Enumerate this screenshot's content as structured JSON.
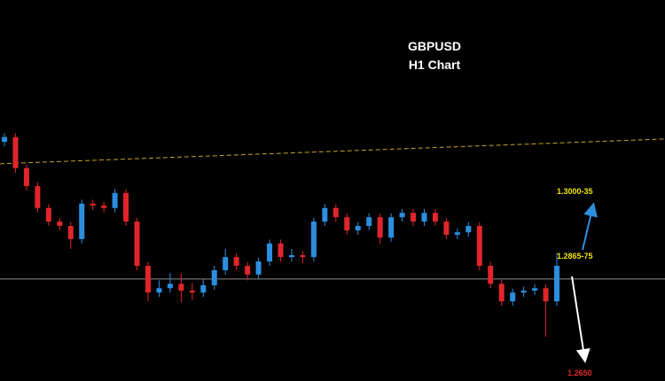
{
  "chart_data": {
    "type": "candlestick",
    "title": "GBPUSD",
    "subtitle": "H1 Chart",
    "annotations": [
      "1.3000-35",
      "1.2865-75",
      "1.2650"
    ],
    "up_color": "#2b8fe0",
    "down_color": "#e0262b",
    "ylim": [
      1.2608,
      1.3392
    ],
    "hline": {
      "value": 1.2818,
      "color": "#8a8a8a"
    },
    "trendline": {
      "values": [
        1.3055,
        1.3106
      ],
      "color": "#c9a227"
    },
    "categories": [
      null,
      null,
      null,
      null,
      null,
      null,
      null,
      null,
      null,
      null,
      null,
      null,
      null,
      null,
      null,
      null,
      null,
      null,
      null,
      null,
      null,
      null,
      null,
      null,
      null,
      null,
      null,
      null,
      null,
      null,
      null,
      null,
      null,
      null,
      null,
      null,
      null,
      null,
      null,
      null,
      null,
      null,
      null,
      null,
      null,
      null,
      null,
      null,
      null,
      null,
      null
    ],
    "open": [
      1.31,
      1.311,
      1.3046,
      1.3009,
      1.2964,
      1.2936,
      1.2927,
      1.29,
      1.2973,
      1.2969,
      1.2964,
      1.2995,
      1.2936,
      1.2845,
      1.279,
      1.2799,
      1.2808,
      1.2794,
      1.279,
      1.2805,
      1.2836,
      1.2863,
      1.2845,
      1.2827,
      1.2854,
      1.2891,
      1.2863,
      1.2867,
      1.2863,
      1.2936,
      1.2964,
      1.2945,
      1.2918,
      1.2927,
      1.2945,
      1.2903,
      1.2945,
      1.2954,
      1.2936,
      1.2954,
      1.2936,
      1.2909,
      1.2914,
      1.2927,
      1.2845,
      1.2808,
      1.2772,
      1.279,
      1.2794,
      1.2799,
      1.2772
    ],
    "high": [
      1.3118,
      1.3118,
      1.3054,
      1.3017,
      1.2972,
      1.2944,
      1.2935,
      1.2981,
      1.2981,
      1.2977,
      1.3003,
      1.3003,
      1.2944,
      1.2853,
      1.2815,
      1.283,
      1.283,
      1.281,
      1.2818,
      1.2845,
      1.288,
      1.2871,
      1.2853,
      1.2862,
      1.2899,
      1.2899,
      1.288,
      1.2875,
      1.2944,
      1.2972,
      1.2972,
      1.2953,
      1.2935,
      1.2953,
      1.2953,
      1.2953,
      1.2962,
      1.2962,
      1.2962,
      1.2962,
      1.2944,
      1.2922,
      1.2935,
      1.2935,
      1.2853,
      1.2816,
      1.2798,
      1.2802,
      1.2807,
      1.2807,
      1.2872
    ],
    "low": [
      1.3091,
      1.3037,
      1.3,
      1.2955,
      1.2927,
      1.2918,
      1.288,
      1.2891,
      1.296,
      1.2955,
      1.2955,
      1.2927,
      1.2836,
      1.2772,
      1.2781,
      1.279,
      1.277,
      1.2775,
      1.2781,
      1.2796,
      1.2827,
      1.2836,
      1.2815,
      1.2818,
      1.2845,
      1.2854,
      1.2854,
      1.285,
      1.2854,
      1.2927,
      1.2936,
      1.2909,
      1.2909,
      1.2918,
      1.289,
      1.2895,
      1.2936,
      1.2927,
      1.2927,
      1.2927,
      1.29,
      1.29,
      1.2905,
      1.2836,
      1.2799,
      1.2763,
      1.2763,
      1.2781,
      1.2785,
      1.2699,
      1.2763
    ],
    "close": [
      1.311,
      1.3046,
      1.3009,
      1.2964,
      1.2936,
      1.2927,
      1.29,
      1.2973,
      1.2969,
      1.2964,
      1.2995,
      1.2936,
      1.2845,
      1.279,
      1.2799,
      1.2808,
      1.2794,
      1.279,
      1.2805,
      1.2836,
      1.2863,
      1.2845,
      1.2827,
      1.2854,
      1.2891,
      1.2863,
      1.2867,
      1.2863,
      1.2936,
      1.2964,
      1.2945,
      1.2918,
      1.2927,
      1.2945,
      1.2903,
      1.2945,
      1.2954,
      1.2936,
      1.2954,
      1.2936,
      1.2909,
      1.2914,
      1.2927,
      1.2845,
      1.2808,
      1.2772,
      1.279,
      1.2794,
      1.2799,
      1.2772,
      1.2845
    ]
  }
}
